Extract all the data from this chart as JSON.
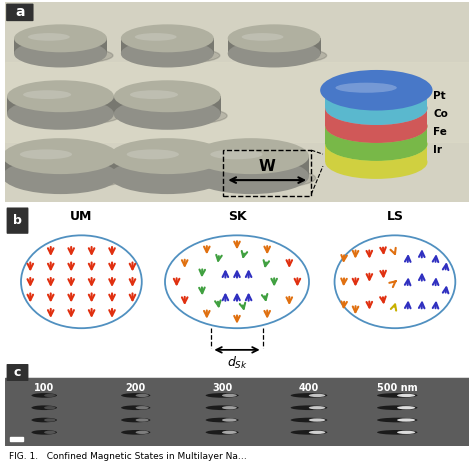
{
  "panel_a_label": "a",
  "panel_b_label": "b",
  "panel_c_label": "c",
  "layer_labels": [
    "Pt",
    "Co",
    "Fe",
    "Ir"
  ],
  "layer_colors": [
    "#7dd8ee",
    "#f07878",
    "#98d868",
    "#f0f060"
  ],
  "layer_side_colors": [
    "#5ab8ce",
    "#d05858",
    "#78b848",
    "#d0d040"
  ],
  "disk_top_color": "#b0b0a0",
  "disk_side_color": "#787870",
  "disk_shadow_color": "#909088",
  "bg_color_a": "#d0cfc0",
  "state_labels": [
    "UM",
    "SK",
    "LS"
  ],
  "W_label": "W",
  "arrow_red": "#e03010",
  "arrow_orange": "#e07010",
  "arrow_blue": "#3030c0",
  "arrow_green": "#40a040",
  "arrow_yellow": "#c8b000",
  "ellipse_color": "#5090c0",
  "nm_labels": [
    "100",
    "200",
    "300",
    "400",
    "500 nm"
  ],
  "caption": "FIG. 1.   Confined Magnetic States in Multilayer Na..."
}
